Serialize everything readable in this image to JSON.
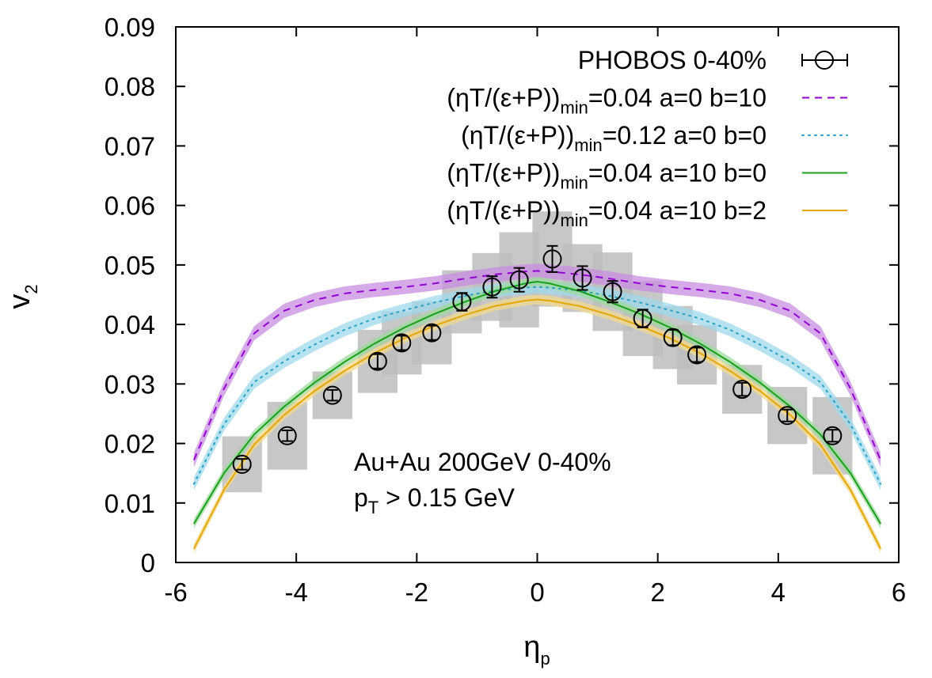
{
  "chart_data": {
    "type": "line",
    "xlabel": "η",
    "xlabel_sub": "p",
    "ylabel": "v",
    "ylabel_sub": "2",
    "xlim": [
      -6,
      6
    ],
    "ylim": [
      0,
      0.09
    ],
    "xticks": [
      -6,
      -4,
      -2,
      0,
      2,
      4,
      6
    ],
    "xtick_labels": [
      "-6",
      "-4",
      "-2",
      "0",
      "2",
      "4",
      "6"
    ],
    "yticks": [
      0,
      0.01,
      0.02,
      0.03,
      0.04,
      0.05,
      0.06,
      0.07,
      0.08,
      0.09
    ],
    "ytick_labels": [
      "0",
      "0.01",
      "0.02",
      "0.03",
      "0.04",
      "0.05",
      "0.06",
      "0.07",
      "0.08",
      "0.09"
    ],
    "grid": false,
    "legend_position": "top-right",
    "annotation": {
      "line1": "Au+Au 200GeV 0-40%",
      "line2_main": "p",
      "line2_sub": "T",
      "line2_rest": " > 0.15 GeV"
    },
    "data_series": {
      "name": "PHOBOS 0-40%",
      "x": [
        -4.9,
        -4.15,
        -3.4,
        -2.65,
        -2.25,
        -1.75,
        -1.25,
        -0.75,
        -0.3,
        0.25,
        0.75,
        1.25,
        1.75,
        2.25,
        2.65,
        3.4,
        4.15,
        4.9
      ],
      "y": [
        0.0165,
        0.0213,
        0.0281,
        0.0338,
        0.0369,
        0.0386,
        0.0438,
        0.0463,
        0.0475,
        0.051,
        0.0478,
        0.0455,
        0.041,
        0.0378,
        0.0349,
        0.0291,
        0.0247,
        0.0213
      ],
      "yerr": [
        0.0009,
        0.0009,
        0.0009,
        0.0012,
        0.0012,
        0.0012,
        0.0015,
        0.0018,
        0.002,
        0.0022,
        0.002,
        0.0018,
        0.0015,
        0.0013,
        0.0012,
        0.0011,
        0.001,
        0.001
      ],
      "syst_half_height": [
        0.0047,
        0.0057,
        0.004,
        0.0053,
        0.0053,
        0.0053,
        0.0053,
        0.0057,
        0.008,
        0.008,
        0.0057,
        0.0066,
        0.0063,
        0.0053,
        0.005,
        0.0041,
        0.0048,
        0.0065
      ],
      "marker": "open-circle",
      "color": "#000000",
      "syst_color": "#bdbdbd"
    },
    "series": [
      {
        "legend_main": "(ηT/(ε+P))",
        "legend_sub": "min",
        "legend_rest": "=0.04 a=0 b=10",
        "style": "dashed",
        "color": "#9400d3",
        "band_color": "#c88ee0",
        "band_halfwidth": 0.0012,
        "x": [
          -5.7,
          -5.2,
          -4.7,
          -4.2,
          -3.7,
          -3.2,
          -2.7,
          -2.2,
          -1.7,
          -1.2,
          -0.7,
          -0.2,
          0,
          0.2,
          0.7,
          1.2,
          1.7,
          2.2,
          2.7,
          3.2,
          3.7,
          4.2,
          4.7,
          5.2,
          5.7
        ],
        "values": [
          0.0172,
          0.0292,
          0.0385,
          0.0423,
          0.0441,
          0.0452,
          0.0458,
          0.0463,
          0.0469,
          0.0477,
          0.0484,
          0.0489,
          0.049,
          0.0489,
          0.0484,
          0.0477,
          0.0469,
          0.0463,
          0.0458,
          0.0452,
          0.0441,
          0.0423,
          0.0385,
          0.0292,
          0.0172
        ]
      },
      {
        "legend_main": "(ηT/(ε+P))",
        "legend_sub": "min",
        "legend_rest": "=0.12 a=0 b=0",
        "style": "dotted",
        "color": "#26a3c4",
        "band_color": "#9fd8ea",
        "band_halfwidth": 0.0011,
        "x": [
          -5.7,
          -5.2,
          -4.7,
          -4.2,
          -3.7,
          -3.2,
          -2.7,
          -2.2,
          -1.7,
          -1.2,
          -0.7,
          -0.2,
          0,
          0.2,
          0.7,
          1.2,
          1.7,
          2.2,
          2.7,
          3.2,
          3.7,
          4.2,
          4.7,
          5.2,
          5.7
        ],
        "values": [
          0.0132,
          0.0232,
          0.0303,
          0.0338,
          0.0366,
          0.0391,
          0.041,
          0.0424,
          0.0437,
          0.0448,
          0.0457,
          0.0462,
          0.0463,
          0.0462,
          0.0457,
          0.0448,
          0.0437,
          0.0424,
          0.041,
          0.0391,
          0.0366,
          0.0338,
          0.0303,
          0.0232,
          0.0132
        ]
      },
      {
        "legend_main": "(ηT/(ε+P))",
        "legend_sub": "min",
        "legend_rest": "=0.04 a=10 b=0",
        "style": "solid",
        "color": "#18a018",
        "band_color": "#9ed99e",
        "band_halfwidth": 0.0008,
        "x": [
          -5.7,
          -5.2,
          -4.7,
          -4.2,
          -3.7,
          -3.2,
          -2.7,
          -2.2,
          -1.7,
          -1.2,
          -0.7,
          -0.2,
          0,
          0.2,
          0.7,
          1.2,
          1.7,
          2.2,
          2.7,
          3.2,
          3.7,
          4.2,
          4.7,
          5.2,
          5.7
        ],
        "values": [
          0.0065,
          0.015,
          0.0215,
          0.0262,
          0.0302,
          0.0337,
          0.0368,
          0.0395,
          0.0418,
          0.0438,
          0.0456,
          0.0469,
          0.0472,
          0.0469,
          0.0456,
          0.0438,
          0.0418,
          0.0395,
          0.0368,
          0.0337,
          0.0302,
          0.0262,
          0.0215,
          0.015,
          0.0065
        ]
      },
      {
        "legend_main": "(ηT/(ε+P))",
        "legend_sub": "min",
        "legend_rest": "=0.04 a=10 b=2",
        "style": "solid",
        "color": "#e6a600",
        "band_color": "#f1d98c",
        "band_halfwidth": 0.0008,
        "x": [
          -5.7,
          -5.2,
          -4.7,
          -4.2,
          -3.7,
          -3.2,
          -2.7,
          -2.2,
          -1.7,
          -1.2,
          -0.7,
          -0.2,
          0,
          0.2,
          0.7,
          1.2,
          1.7,
          2.2,
          2.7,
          3.2,
          3.7,
          4.2,
          4.7,
          5.2,
          5.7
        ],
        "values": [
          0.0023,
          0.0122,
          0.0198,
          0.0248,
          0.0288,
          0.0322,
          0.0352,
          0.0377,
          0.0398,
          0.0416,
          0.0431,
          0.044,
          0.0442,
          0.044,
          0.0431,
          0.0416,
          0.0398,
          0.0377,
          0.0352,
          0.0322,
          0.0288,
          0.0248,
          0.0198,
          0.0122,
          0.0023
        ]
      }
    ]
  }
}
